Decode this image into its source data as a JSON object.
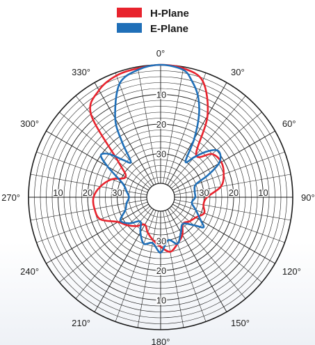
{
  "colors": {
    "h_plane": "#e8232d",
    "e_plane": "#1f6fb8",
    "grid": "#1a1a1a"
  },
  "chart_data": {
    "type": "polar-line",
    "legend": {
      "placement": "top-center"
    },
    "angle_labels": [
      {
        "angle": 0,
        "text": "0°"
      },
      {
        "angle": 30,
        "text": "30°"
      },
      {
        "angle": 60,
        "text": "60°"
      },
      {
        "angle": 90,
        "text": "90°"
      },
      {
        "angle": 120,
        "text": "120°"
      },
      {
        "angle": 150,
        "text": "150°"
      },
      {
        "angle": 180,
        "text": "180°"
      },
      {
        "angle": 210,
        "text": "210°"
      },
      {
        "angle": 240,
        "text": "240°"
      },
      {
        "angle": 270,
        "text": "270°"
      },
      {
        "angle": 300,
        "text": "300°"
      },
      {
        "angle": 330,
        "text": "330°"
      }
    ],
    "radial_axis": {
      "min": -40,
      "max": 0,
      "unit": "dB",
      "major_step": 10,
      "minor_step": 2,
      "ring_labels": [
        {
          "value": -10,
          "text": "10"
        },
        {
          "value": -20,
          "text": "20"
        },
        {
          "value": -30,
          "text": "30"
        }
      ]
    },
    "angular_grid_step": 10,
    "series": [
      {
        "name": "H-Plane",
        "color": "#e8232d",
        "points": [
          [
            0,
            0
          ],
          [
            10,
            -0.5
          ],
          [
            20,
            -3
          ],
          [
            30,
            -13
          ],
          [
            40,
            -26
          ],
          [
            50,
            -22
          ],
          [
            60,
            -21
          ],
          [
            70,
            -22
          ],
          [
            80,
            -24
          ],
          [
            90,
            -29
          ],
          [
            100,
            -30
          ],
          [
            110,
            -29
          ],
          [
            120,
            -31
          ],
          [
            130,
            -32
          ],
          [
            140,
            -33
          ],
          [
            150,
            -30
          ],
          [
            160,
            -28
          ],
          [
            170,
            -26
          ],
          [
            180,
            -28
          ],
          [
            190,
            -30
          ],
          [
            200,
            -32
          ],
          [
            210,
            -34
          ],
          [
            220,
            -32
          ],
          [
            230,
            -30
          ],
          [
            240,
            -28
          ],
          [
            250,
            -23
          ],
          [
            260,
            -22
          ],
          [
            270,
            -22
          ],
          [
            280,
            -24
          ],
          [
            290,
            -27
          ],
          [
            300,
            -31
          ],
          [
            310,
            -26
          ],
          [
            320,
            -8
          ],
          [
            330,
            -3
          ],
          [
            340,
            -1
          ],
          [
            350,
            -0.5
          ],
          [
            360,
            0
          ]
        ]
      },
      {
        "name": "E-Plane",
        "color": "#1f6fb8",
        "points": [
          [
            0,
            0
          ],
          [
            10,
            -1
          ],
          [
            15,
            -4
          ],
          [
            20,
            -8
          ],
          [
            25,
            -14
          ],
          [
            30,
            -22
          ],
          [
            35,
            -30
          ],
          [
            40,
            -27
          ],
          [
            45,
            -23
          ],
          [
            50,
            -20
          ],
          [
            55,
            -20
          ],
          [
            60,
            -22
          ],
          [
            65,
            -27
          ],
          [
            70,
            -32
          ],
          [
            80,
            -33
          ],
          [
            90,
            -33
          ],
          [
            100,
            -34
          ],
          [
            110,
            -32
          ],
          [
            120,
            -29
          ],
          [
            125,
            -27
          ],
          [
            130,
            -30
          ],
          [
            140,
            -33
          ],
          [
            150,
            -31
          ],
          [
            160,
            -28
          ],
          [
            170,
            -30
          ],
          [
            180,
            -26
          ],
          [
            190,
            -29
          ],
          [
            200,
            -28
          ],
          [
            210,
            -31
          ],
          [
            220,
            -34
          ],
          [
            230,
            -31
          ],
          [
            240,
            -29
          ],
          [
            250,
            -32
          ],
          [
            260,
            -33
          ],
          [
            270,
            -34
          ],
          [
            280,
            -33
          ],
          [
            290,
            -31
          ],
          [
            300,
            -24
          ],
          [
            305,
            -20
          ],
          [
            310,
            -22
          ],
          [
            315,
            -27
          ],
          [
            320,
            -29
          ],
          [
            325,
            -22
          ],
          [
            330,
            -14
          ],
          [
            340,
            -4
          ],
          [
            350,
            -1
          ],
          [
            360,
            0
          ]
        ]
      }
    ]
  }
}
